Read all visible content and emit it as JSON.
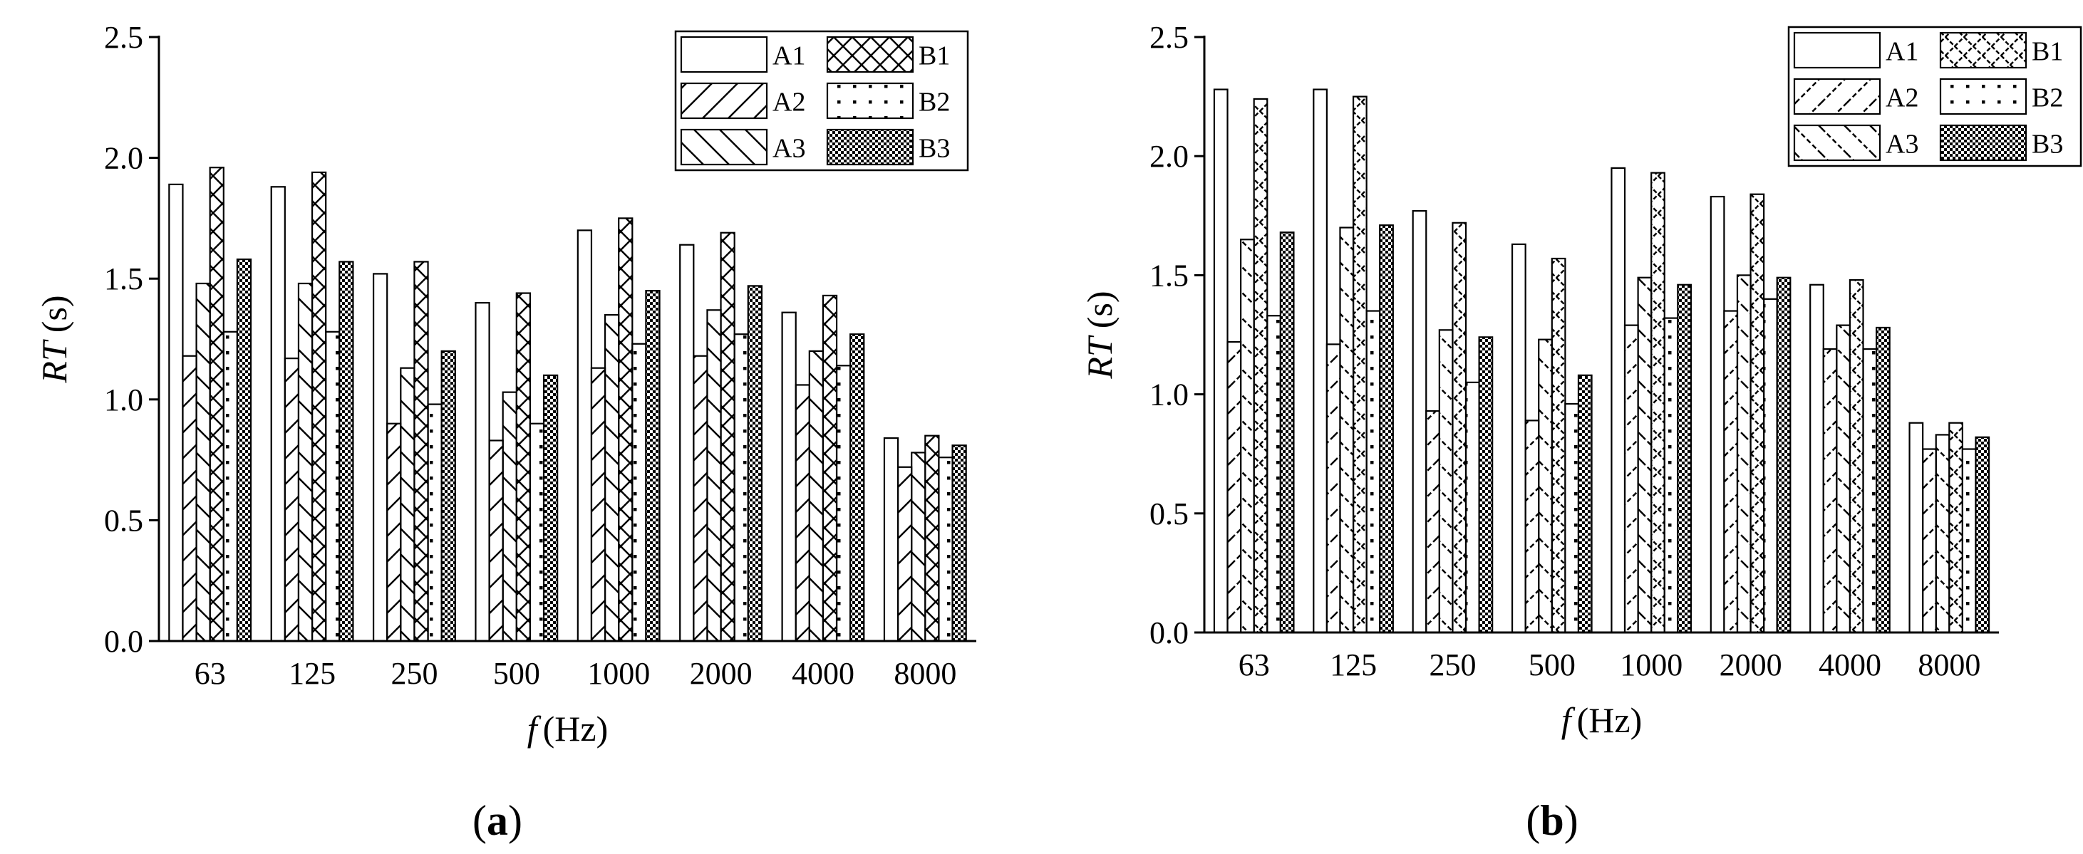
{
  "chart_data": [
    {
      "type": "bar",
      "caption": "(a)",
      "caption_letter": "a",
      "ylabel": "RT (s)",
      "ylabel_italic": "RT",
      "ylabel_unit": "(s)",
      "xlabel": "f (Hz)",
      "xlabel_italic": "f",
      "xlabel_unit": "(Hz)",
      "ylim": [
        0,
        2.5
      ],
      "yticks": [
        "0.0",
        "0.5",
        "1.0",
        "1.5",
        "2.0",
        "2.5"
      ],
      "categories": [
        "63",
        "125",
        "250",
        "500",
        "1000",
        "2000",
        "4000",
        "8000"
      ],
      "legend_position": "top-right",
      "series": [
        {
          "name": "A1",
          "pattern": "blank",
          "values": [
            1.89,
            1.88,
            1.52,
            1.4,
            1.7,
            1.64,
            1.36,
            0.84
          ]
        },
        {
          "name": "A2",
          "pattern": "forward-hatch",
          "values": [
            1.18,
            1.17,
            0.9,
            0.83,
            1.13,
            1.18,
            1.06,
            0.72
          ]
        },
        {
          "name": "A3",
          "pattern": "back-hatch",
          "values": [
            1.48,
            1.48,
            1.13,
            1.03,
            1.35,
            1.37,
            1.2,
            0.78
          ]
        },
        {
          "name": "B1",
          "pattern": "cross-hatch",
          "values": [
            1.96,
            1.94,
            1.57,
            1.44,
            1.75,
            1.69,
            1.43,
            0.85
          ]
        },
        {
          "name": "B2",
          "pattern": "sparse-dots",
          "values": [
            1.28,
            1.28,
            0.98,
            0.9,
            1.23,
            1.27,
            1.14,
            0.76
          ]
        },
        {
          "name": "B3",
          "pattern": "dense-dots",
          "values": [
            1.58,
            1.57,
            1.2,
            1.1,
            1.45,
            1.47,
            1.27,
            0.81
          ]
        }
      ]
    },
    {
      "type": "bar",
      "caption": "(b)",
      "caption_letter": "b",
      "ylabel": "RT (s)",
      "ylabel_italic": "RT",
      "ylabel_unit": "(s)",
      "xlabel": "f (Hz)",
      "xlabel_italic": "f",
      "xlabel_unit": "(Hz)",
      "ylim": [
        0,
        2.5
      ],
      "yticks": [
        "0.0",
        "0.5",
        "1.0",
        "1.5",
        "2.0",
        "2.5"
      ],
      "categories": [
        "63",
        "125",
        "250",
        "500",
        "1000",
        "2000",
        "4000",
        "8000"
      ],
      "legend_position": "top-right",
      "series": [
        {
          "name": "A1",
          "pattern": "blank",
          "values": [
            2.28,
            2.28,
            1.77,
            1.63,
            1.95,
            1.83,
            1.46,
            0.88
          ]
        },
        {
          "name": "A2",
          "pattern": "forward-hatch-dashed",
          "values": [
            1.22,
            1.21,
            0.93,
            0.89,
            1.29,
            1.35,
            1.19,
            0.77
          ]
        },
        {
          "name": "A3",
          "pattern": "back-hatch-dashed",
          "values": [
            1.65,
            1.7,
            1.27,
            1.23,
            1.49,
            1.5,
            1.29,
            0.83
          ]
        },
        {
          "name": "B1",
          "pattern": "cross-hatch-dashed",
          "values": [
            2.24,
            2.25,
            1.72,
            1.57,
            1.93,
            1.84,
            1.48,
            0.88
          ]
        },
        {
          "name": "B2",
          "pattern": "sparse-dots",
          "values": [
            1.33,
            1.35,
            1.05,
            0.96,
            1.32,
            1.4,
            1.19,
            0.77
          ]
        },
        {
          "name": "B3",
          "pattern": "dense-dots",
          "values": [
            1.68,
            1.71,
            1.24,
            1.08,
            1.46,
            1.49,
            1.28,
            0.82
          ]
        }
      ]
    }
  ]
}
